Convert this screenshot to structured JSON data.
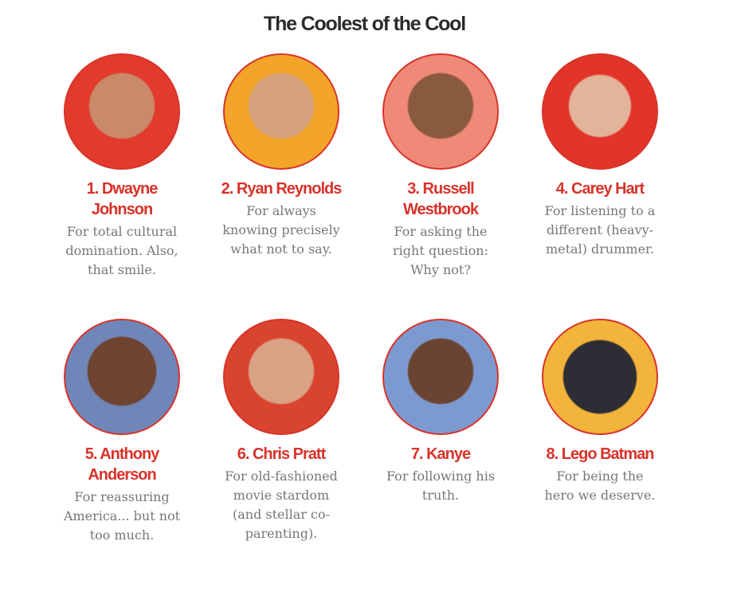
{
  "title": "The Coolest of the Cool",
  "items": [
    {
      "name": "1. Dwayne Johnson",
      "description": "For total cultural domination. Also, that smile."
    },
    {
      "name": "2. Ryan Reynolds",
      "description": "For always knowing precisely what not to say."
    },
    {
      "name": "3. Russell Westbrook",
      "description": "For asking the right question: Why not?"
    },
    {
      "name": "4. Carey Hart",
      "description": "For listening to a different (heavy-metal) drummer."
    },
    {
      "name": "5. Anthony Anderson",
      "description": "For reassuring America... but not too much."
    },
    {
      "name": "6. Chris Pratt",
      "description": "For old-fashioned movie stardom (and stellar co-parenting)."
    },
    {
      "name": "7. Kanye",
      "description": "For following his truth."
    },
    {
      "name": "8. Lego Batman",
      "description": "For being the hero we deserve."
    }
  ]
}
